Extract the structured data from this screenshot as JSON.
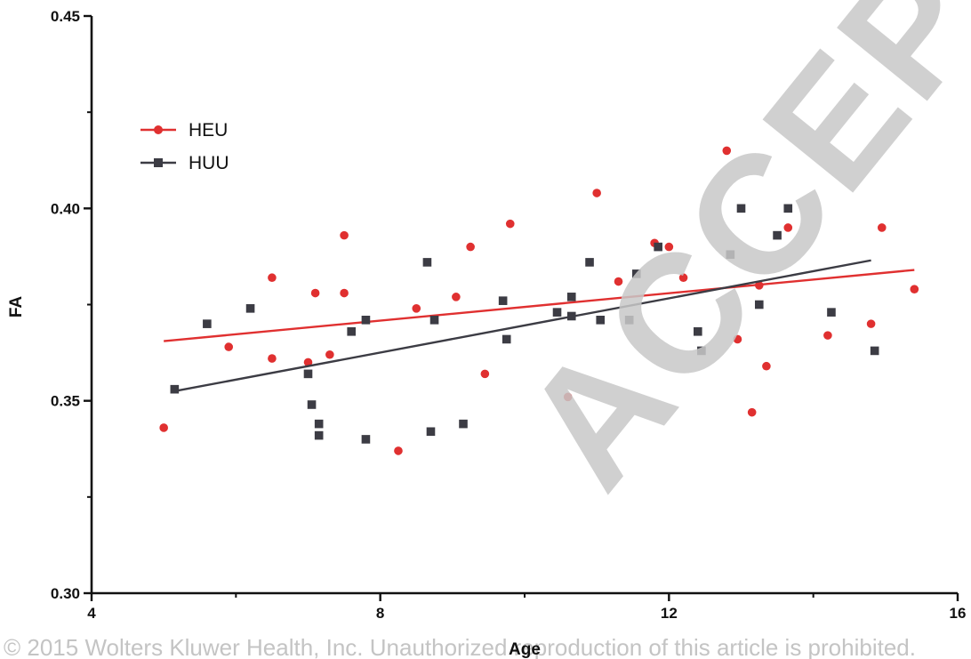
{
  "watermark": "ACCEPTED",
  "copyright": "© 2015 Wolters Kluwer Health, Inc. Unauthorized reproduction of this article is prohibited.",
  "colors": {
    "HEU": "#e03030",
    "HUU": "#3c3c44"
  },
  "chart_data": {
    "type": "scatter",
    "title": "",
    "xlabel": "Age",
    "ylabel": "FA",
    "xlim": [
      4,
      16
    ],
    "ylim": [
      0.3,
      0.45
    ],
    "xticks": [
      4,
      8,
      12,
      16
    ],
    "yticks": [
      0.3,
      0.35,
      0.4,
      0.45
    ],
    "xtick_labels": [
      "4",
      "8",
      "12",
      "16"
    ],
    "ytick_labels": [
      "0.30",
      "0.35",
      "0.40",
      "0.45"
    ],
    "grid": false,
    "legend_position": "upper-left",
    "series": [
      {
        "name": "HEU",
        "marker": "circle",
        "points": [
          [
            5.0,
            0.343
          ],
          [
            5.9,
            0.364
          ],
          [
            6.5,
            0.382
          ],
          [
            6.5,
            0.361
          ],
          [
            7.0,
            0.36
          ],
          [
            7.1,
            0.378
          ],
          [
            7.3,
            0.362
          ],
          [
            7.5,
            0.393
          ],
          [
            7.5,
            0.378
          ],
          [
            8.25,
            0.337
          ],
          [
            8.5,
            0.374
          ],
          [
            9.05,
            0.377
          ],
          [
            9.25,
            0.39
          ],
          [
            9.45,
            0.357
          ],
          [
            9.8,
            0.396
          ],
          [
            10.6,
            0.351
          ],
          [
            11.0,
            0.404
          ],
          [
            11.3,
            0.381
          ],
          [
            11.8,
            0.391
          ],
          [
            12.0,
            0.39
          ],
          [
            12.2,
            0.382
          ],
          [
            12.8,
            0.415
          ],
          [
            12.95,
            0.366
          ],
          [
            13.15,
            0.347
          ],
          [
            13.25,
            0.38
          ],
          [
            13.35,
            0.359
          ],
          [
            13.65,
            0.395
          ],
          [
            14.2,
            0.367
          ],
          [
            14.8,
            0.37
          ],
          [
            14.95,
            0.395
          ],
          [
            15.4,
            0.379
          ]
        ],
        "trend": [
          [
            5.0,
            0.3655
          ],
          [
            15.4,
            0.384
          ]
        ]
      },
      {
        "name": "HUU",
        "marker": "square",
        "points": [
          [
            5.15,
            0.353
          ],
          [
            5.6,
            0.37
          ],
          [
            6.2,
            0.374
          ],
          [
            7.0,
            0.357
          ],
          [
            7.05,
            0.349
          ],
          [
            7.15,
            0.344
          ],
          [
            7.15,
            0.341
          ],
          [
            7.6,
            0.368
          ],
          [
            7.8,
            0.34
          ],
          [
            7.8,
            0.371
          ],
          [
            8.65,
            0.386
          ],
          [
            8.7,
            0.342
          ],
          [
            8.75,
            0.371
          ],
          [
            9.15,
            0.344
          ],
          [
            9.7,
            0.376
          ],
          [
            9.75,
            0.366
          ],
          [
            10.45,
            0.373
          ],
          [
            10.65,
            0.377
          ],
          [
            10.65,
            0.372
          ],
          [
            10.9,
            0.386
          ],
          [
            11.05,
            0.371
          ],
          [
            11.45,
            0.371
          ],
          [
            11.55,
            0.383
          ],
          [
            11.85,
            0.39
          ],
          [
            12.4,
            0.368
          ],
          [
            12.45,
            0.363
          ],
          [
            12.85,
            0.388
          ],
          [
            13.0,
            0.4
          ],
          [
            13.25,
            0.375
          ],
          [
            13.5,
            0.393
          ],
          [
            13.65,
            0.4
          ],
          [
            14.25,
            0.373
          ],
          [
            14.85,
            0.363
          ]
        ],
        "trend": [
          [
            5.15,
            0.3525
          ],
          [
            14.8,
            0.3865
          ]
        ]
      }
    ]
  }
}
